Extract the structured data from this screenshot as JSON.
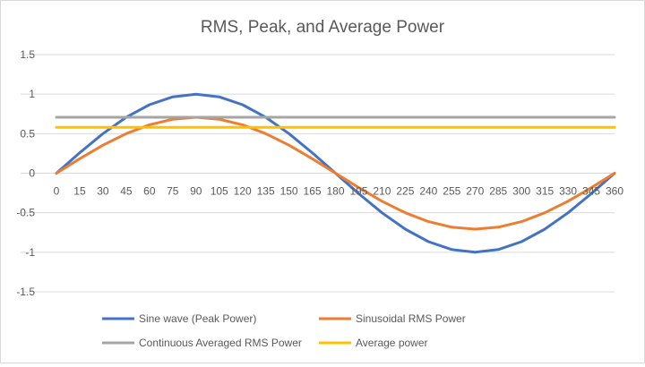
{
  "chart_data": {
    "type": "line",
    "title": "RMS, Peak, and Average Power",
    "xlabel": "",
    "ylabel": "",
    "ylim": [
      -1.5,
      1.5
    ],
    "y_ticks": [
      "1.5",
      "1",
      "0.5",
      "0",
      "-0.5",
      "-1",
      "-1.5"
    ],
    "y_tick_values": [
      1.5,
      1,
      0.5,
      0,
      -0.5,
      -1,
      -1.5
    ],
    "grid": true,
    "legend_position": "bottom",
    "x": [
      0,
      15,
      30,
      45,
      60,
      75,
      90,
      105,
      120,
      135,
      150,
      165,
      180,
      195,
      210,
      225,
      240,
      255,
      270,
      285,
      300,
      315,
      330,
      345,
      360
    ],
    "x_tick_labels": [
      "0",
      "15",
      "30",
      "45",
      "60",
      "75",
      "90",
      "105",
      "120",
      "135",
      "150",
      "165",
      "180",
      "195",
      "210",
      "225",
      "240",
      "255",
      "270",
      "285",
      "300",
      "315",
      "330",
      "345",
      "360"
    ],
    "series": [
      {
        "name": "Sine wave (Peak Power)",
        "color": "#4472c4",
        "values": [
          0,
          0.259,
          0.5,
          0.707,
          0.866,
          0.966,
          1,
          0.966,
          0.866,
          0.707,
          0.5,
          0.259,
          0,
          -0.259,
          -0.5,
          -0.707,
          -0.866,
          -0.966,
          -1,
          -0.966,
          -0.866,
          -0.707,
          -0.5,
          -0.259,
          0
        ]
      },
      {
        "name": "Sinusoidal RMS Power",
        "color": "#ed7d31",
        "values": [
          0,
          0.183,
          0.354,
          0.5,
          0.612,
          0.683,
          0.707,
          0.683,
          0.612,
          0.5,
          0.354,
          0.183,
          0,
          -0.183,
          -0.354,
          -0.5,
          -0.612,
          -0.683,
          -0.707,
          -0.683,
          -0.612,
          -0.5,
          -0.354,
          -0.183,
          0
        ]
      },
      {
        "name": "Continuous Averaged RMS Power",
        "color": "#a5a5a5",
        "values": [
          0.707,
          0.707,
          0.707,
          0.707,
          0.707,
          0.707,
          0.707,
          0.707,
          0.707,
          0.707,
          0.707,
          0.707,
          0.707,
          0.707,
          0.707,
          0.707,
          0.707,
          0.707,
          0.707,
          0.707,
          0.707,
          0.707,
          0.707,
          0.707,
          0.707
        ]
      },
      {
        "name": "Average power",
        "color": "#ffc000",
        "values": [
          0.58,
          0.58,
          0.58,
          0.58,
          0.58,
          0.58,
          0.58,
          0.58,
          0.58,
          0.58,
          0.58,
          0.58,
          0.58,
          0.58,
          0.58,
          0.58,
          0.58,
          0.58,
          0.58,
          0.58,
          0.58,
          0.58,
          0.58,
          0.58,
          0.58
        ]
      }
    ],
    "colors": {
      "gridline": "#d9d9d9",
      "text": "#595959"
    }
  }
}
